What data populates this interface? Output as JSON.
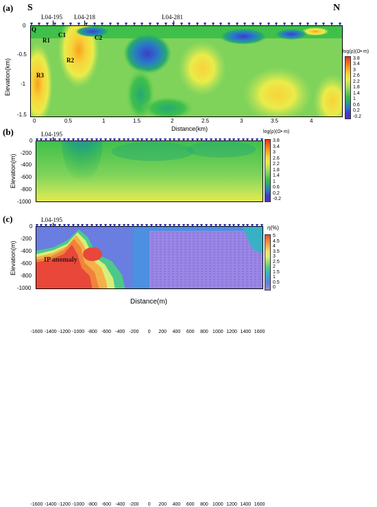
{
  "panel_a": {
    "tag": "(a)",
    "south": "S",
    "north": "N",
    "lines": [
      "L04-195",
      "L04-218",
      "L04-281"
    ],
    "ylabel": "Elevation(km)",
    "xlabel": "Distance(km)",
    "yticks": [
      "0",
      "-0.5",
      "-1",
      "-1.5"
    ],
    "xticks": [
      "0",
      "0.5",
      "1",
      "1.5",
      "2",
      "2.5",
      "3",
      "3.5",
      "4"
    ],
    "region_labels": [
      "Q",
      "R1",
      "C1",
      "C2",
      "R2",
      "R3"
    ],
    "colorbar_title": "log(ρ)(Ω• m)",
    "colorbar_ticks": [
      "3.8",
      "3.4",
      "3",
      "2.6",
      "2.2",
      "1.8",
      "1.4",
      "1",
      "0.6",
      "0.2",
      "-0.2"
    ]
  },
  "panel_b": {
    "tag": "(b)",
    "line": "L04-195",
    "ylabel": "Elevation(m)",
    "yticks": [
      "0",
      "-200",
      "-400",
      "-600",
      "-800",
      "-1000"
    ],
    "xticks": [
      "-1600",
      "-1400",
      "-1200",
      "-1000",
      "-800",
      "-600",
      "-400",
      "-200",
      "0",
      "200",
      "400",
      "600",
      "800",
      "1000",
      "1200",
      "1400",
      "1600"
    ],
    "colorbar_title": "log(ρ)(Ω• m)",
    "colorbar_ticks": [
      "3.8",
      "3.4",
      "3",
      "2.6",
      "2.2",
      "1.8",
      "1.4",
      "1",
      "0.6",
      "0.2",
      "-0.2"
    ]
  },
  "panel_c": {
    "tag": "(c)",
    "line": "L04-195",
    "ylabel": "Elevation(m)",
    "xlabel": "Distance(m)",
    "anomaly_label": "IP anomaly",
    "yticks": [
      "0",
      "-200",
      "-400",
      "-600",
      "-800",
      "-1000"
    ],
    "xticks": [
      "-1600",
      "-1400",
      "-1200",
      "-1000",
      "-800",
      "-600",
      "-400",
      "-200",
      "0",
      "200",
      "400",
      "600",
      "800",
      "1000",
      "1200",
      "1400",
      "1600"
    ],
    "colorbar_title": "η(%)",
    "colorbar_ticks": [
      "5",
      "4.5",
      "4",
      "3.5",
      "3",
      "2.5",
      "2",
      "1.5",
      "1",
      "0.5",
      "0"
    ]
  },
  "colors": {
    "resistivity_scale": [
      "#e8301f",
      "#f26a1c",
      "#f7a21e",
      "#f9d23a",
      "#e9ec4a",
      "#b9e35a",
      "#7fd35b",
      "#3fc04a",
      "#27a873",
      "#2a78c9",
      "#3a3fc6",
      "#5a2ac0"
    ],
    "ip_scale": [
      "#e8473a",
      "#f0833a",
      "#f5b04a",
      "#f3df6a",
      "#d9ee7a",
      "#8fdd74",
      "#4cc98a",
      "#39b1c5",
      "#4d8fe0",
      "#6a7de0",
      "#9a86e6"
    ],
    "station_marker": "#2c2fa6"
  }
}
